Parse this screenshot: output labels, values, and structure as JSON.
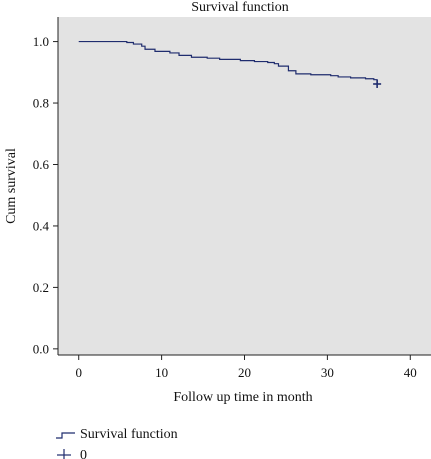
{
  "colors": {
    "plot_background": "#e3e3e3",
    "curve": "#1f2c6e",
    "axis": "#222222"
  },
  "chart_data": {
    "type": "line",
    "title": "Survival function",
    "xlabel": "Follow up time in month",
    "ylabel": "Cum survival",
    "xlim": [
      -2.5,
      42.5
    ],
    "ylim": [
      -0.02,
      1.08
    ],
    "xticks": [
      0,
      10,
      20,
      30,
      40
    ],
    "yticks": [
      0.0,
      0.2,
      0.4,
      0.6,
      0.8,
      1.0
    ],
    "xtick_labels": [
      "0",
      "10",
      "20",
      "30",
      "40"
    ],
    "ytick_labels": [
      "0.0",
      "0.2",
      "0.4",
      "0.6",
      "0.8",
      "1.0"
    ],
    "grid": false,
    "legend_placement": "bottom-left",
    "series": [
      {
        "name": "Survival function",
        "style": "step",
        "x": [
          0,
          5.8,
          6.6,
          7.6,
          8.0,
          9.2,
          11.0,
          12.1,
          13.6,
          15.5,
          17.0,
          19.5,
          21.2,
          22.8,
          23.6,
          24.1,
          25.3,
          26.2,
          28.0,
          30.4,
          31.3,
          32.8,
          34.6,
          35.6,
          36.0
        ],
        "y": [
          1.0,
          0.997,
          0.992,
          0.985,
          0.975,
          0.968,
          0.963,
          0.955,
          0.949,
          0.946,
          0.942,
          0.938,
          0.935,
          0.932,
          0.928,
          0.92,
          0.905,
          0.895,
          0.892,
          0.889,
          0.885,
          0.882,
          0.879,
          0.876,
          0.862
        ]
      },
      {
        "name": "0",
        "style": "censor",
        "x": [
          36.0
        ],
        "y": [
          0.862
        ]
      }
    ]
  }
}
